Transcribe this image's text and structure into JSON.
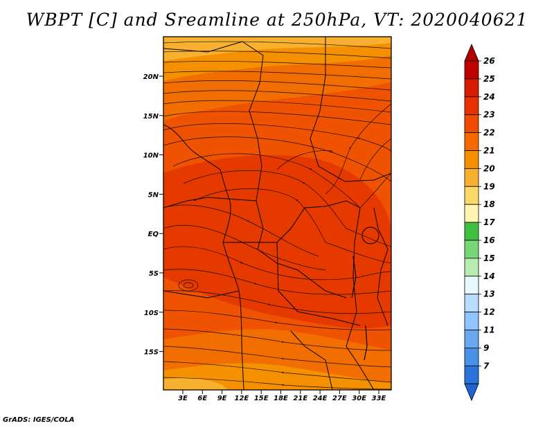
{
  "title": "WBPT [C] and Sreamline at 250hPa, VT: 2020040621",
  "credit": "GrADS: IGES/COLA",
  "lat_labels": [
    "20N",
    "15N",
    "10N",
    "5N",
    "EQ",
    "5S",
    "10S",
    "15S"
  ],
  "lon_labels": [
    "3E",
    "6E",
    "9E",
    "12E",
    "15E",
    "18E",
    "21E",
    "24E",
    "27E",
    "30E",
    "33E"
  ],
  "colorbar": {
    "labels": [
      "26",
      "25",
      "24",
      "23",
      "22",
      "21",
      "20",
      "19",
      "18",
      "17",
      "16",
      "15",
      "14",
      "13",
      "12",
      "11",
      "9",
      "7"
    ],
    "colors": [
      "#c00000",
      "#d81a00",
      "#e83000",
      "#f04a00",
      "#f56a00",
      "#f58e00",
      "#f8b030",
      "#fcd868",
      "#fff4b0",
      "#40c040",
      "#78d878",
      "#b8ecb0",
      "#e8f8ff",
      "#b8dcff",
      "#90c4ff",
      "#68a8f0",
      "#4890e8",
      "#2a72dc"
    ],
    "top_arrow_color": "#b00000",
    "bottom_arrow_color": "#1e64d2"
  },
  "field_colors": {
    "c24": "#e63900",
    "c23": "#ef5200",
    "c22": "#f26e00",
    "c21": "#f59000",
    "c20": "#f8b030"
  }
}
